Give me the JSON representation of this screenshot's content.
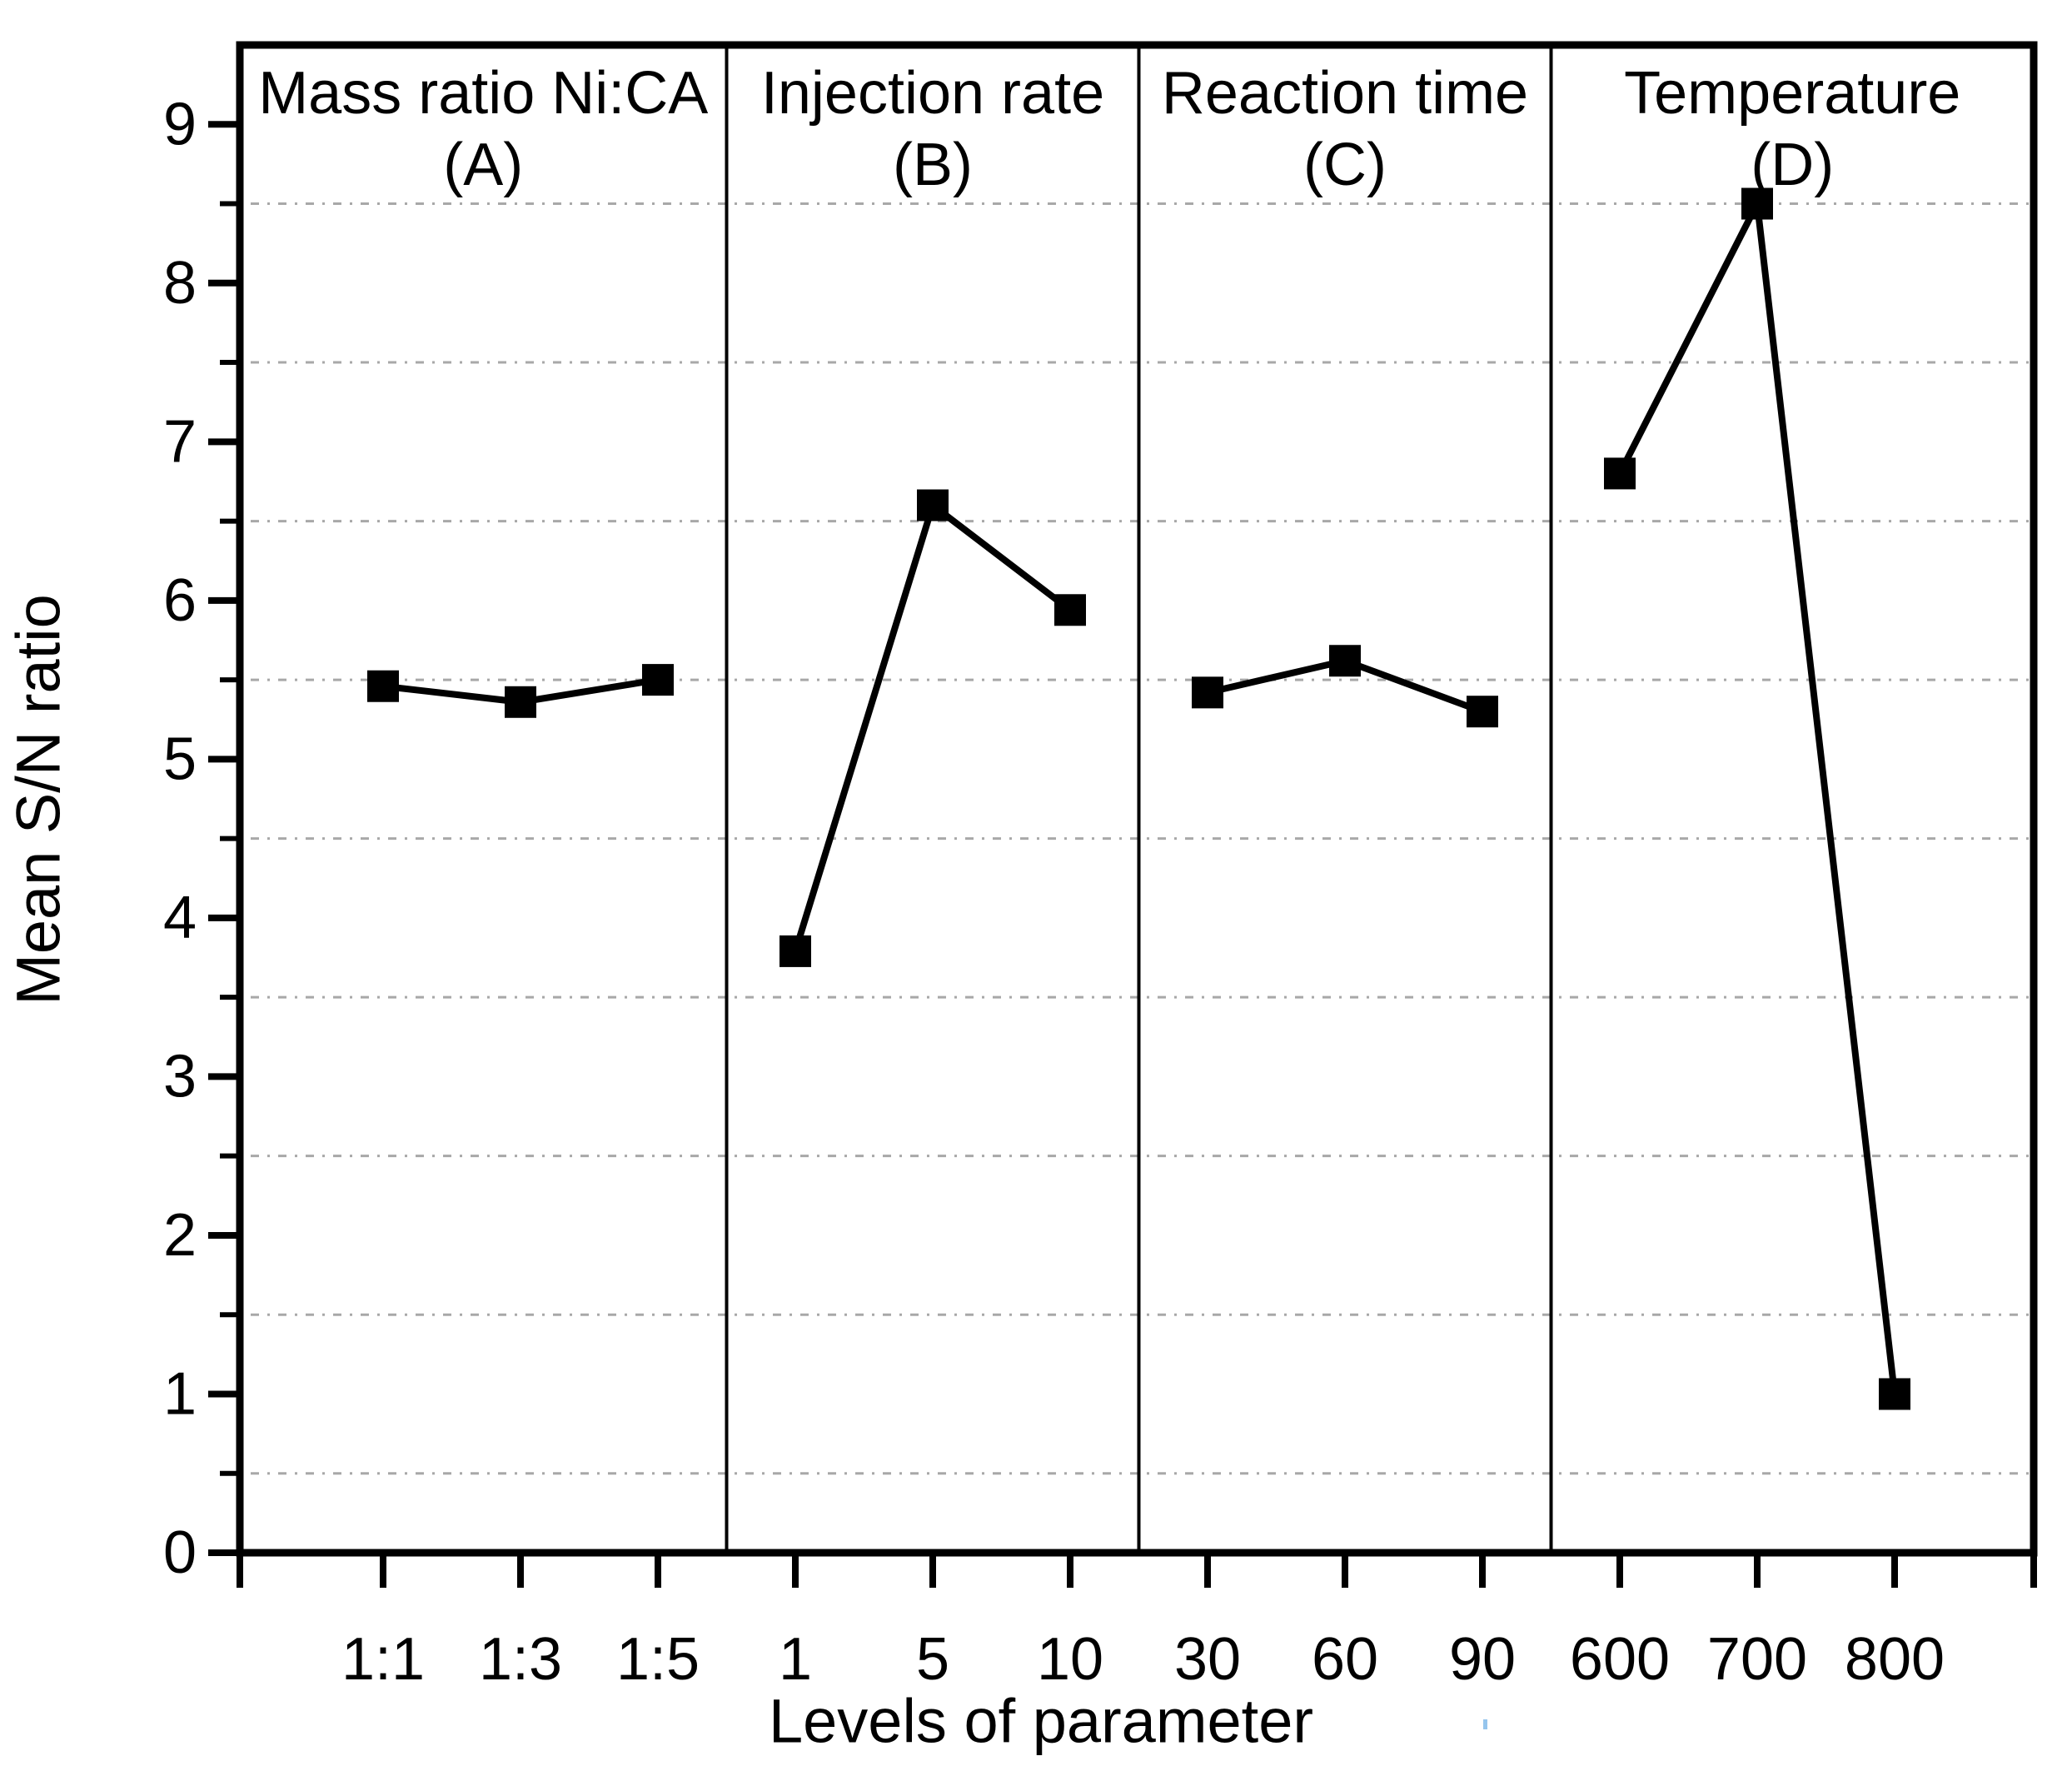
{
  "chart_data": {
    "type": "line",
    "title": "",
    "xlabel": "Levels of parameter",
    "ylabel": "Mean S/N ratio",
    "ylim": [
      0,
      9.5
    ],
    "yticks": [
      "0",
      "1",
      "2",
      "3",
      "4",
      "5",
      "6",
      "7",
      "8",
      "9"
    ],
    "ygrid_dotted_at": [
      0.5,
      1.5,
      2.5,
      3.5,
      4.5,
      5.5,
      6.5,
      7.5,
      8.5
    ],
    "grid": "horizontal dotted lines at each half unit",
    "legend": "none",
    "marker": "filled-square",
    "line_color": "#000000",
    "grid_color": "#a8a8a8",
    "frame_color": "#000000",
    "panels": [
      {
        "title": "Mass ratio Ni:CA",
        "tag": "(A)",
        "categories": [
          "1:1",
          "1:3",
          "1:5"
        ],
        "values": [
          5.46,
          5.36,
          5.5
        ]
      },
      {
        "title": "Injection rate",
        "tag": "(B)",
        "categories": [
          "1",
          "5",
          "10"
        ],
        "values": [
          3.79,
          6.6,
          5.94
        ]
      },
      {
        "title": "Reaction time",
        "tag": "(C)",
        "categories": [
          "30",
          "60",
          "90"
        ],
        "values": [
          5.42,
          5.62,
          5.3
        ]
      },
      {
        "title": "Temperature",
        "tag": "(D)",
        "categories": [
          "600",
          "700",
          "800"
        ],
        "values": [
          6.8,
          8.5,
          1.0
        ]
      }
    ],
    "artifact_speck": {
      "x": 1781,
      "y": 2064,
      "color": "#7ab6e8"
    }
  }
}
